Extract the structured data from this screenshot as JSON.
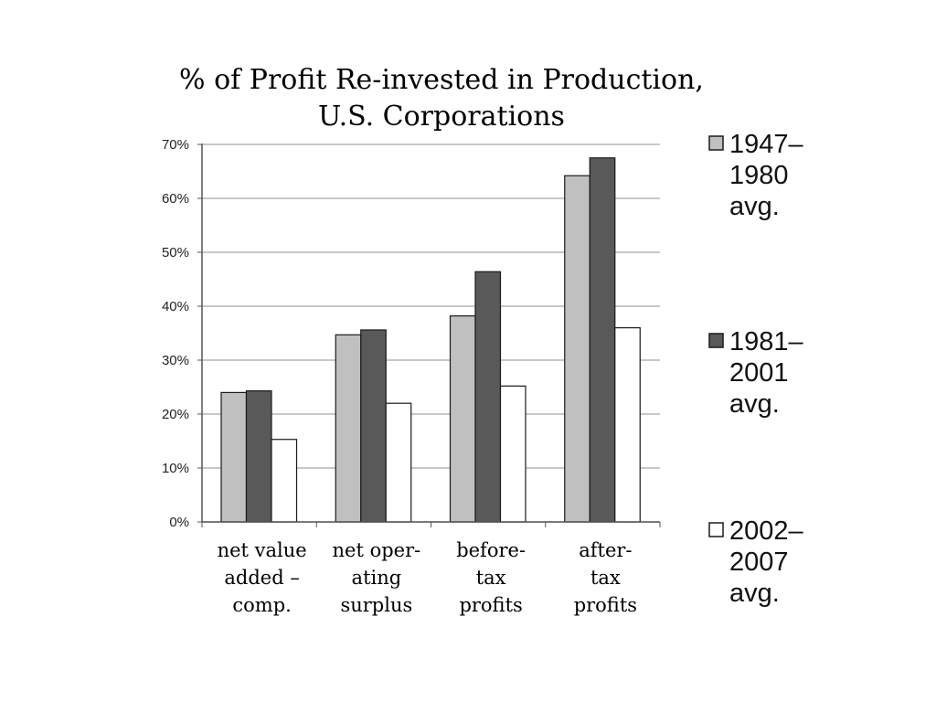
{
  "chart_data": {
    "type": "bar",
    "title_lines": [
      "% of Profit Re-invested in Production,",
      "U.S. Corporations"
    ],
    "categories": [
      [
        "net value",
        "added –",
        "comp."
      ],
      [
        "net oper-",
        "ating",
        "surplus"
      ],
      [
        "before-",
        "tax",
        "profits"
      ],
      [
        "after-",
        "tax",
        "profits"
      ]
    ],
    "series": [
      {
        "name_lines": [
          "1947–",
          "1980",
          "avg."
        ],
        "color": "#c0c0c0",
        "values": [
          24,
          34.7,
          38.2,
          64.2
        ]
      },
      {
        "name_lines": [
          "1981–",
          "2001",
          "avg."
        ],
        "color": "#595959",
        "values": [
          24.3,
          35.6,
          46.4,
          67.5
        ]
      },
      {
        "name_lines": [
          "2002–",
          "2007",
          "avg."
        ],
        "color": "#ffffff",
        "values": [
          15.3,
          22,
          25.2,
          36
        ]
      }
    ],
    "ylim": [
      0,
      70
    ],
    "yticks": [
      0,
      10,
      20,
      30,
      40,
      50,
      60,
      70
    ],
    "ytick_labels": [
      "0%",
      "10%",
      "20%",
      "30%",
      "40%",
      "50%",
      "60%",
      "70%"
    ],
    "grid": true,
    "legend_position": "right"
  }
}
